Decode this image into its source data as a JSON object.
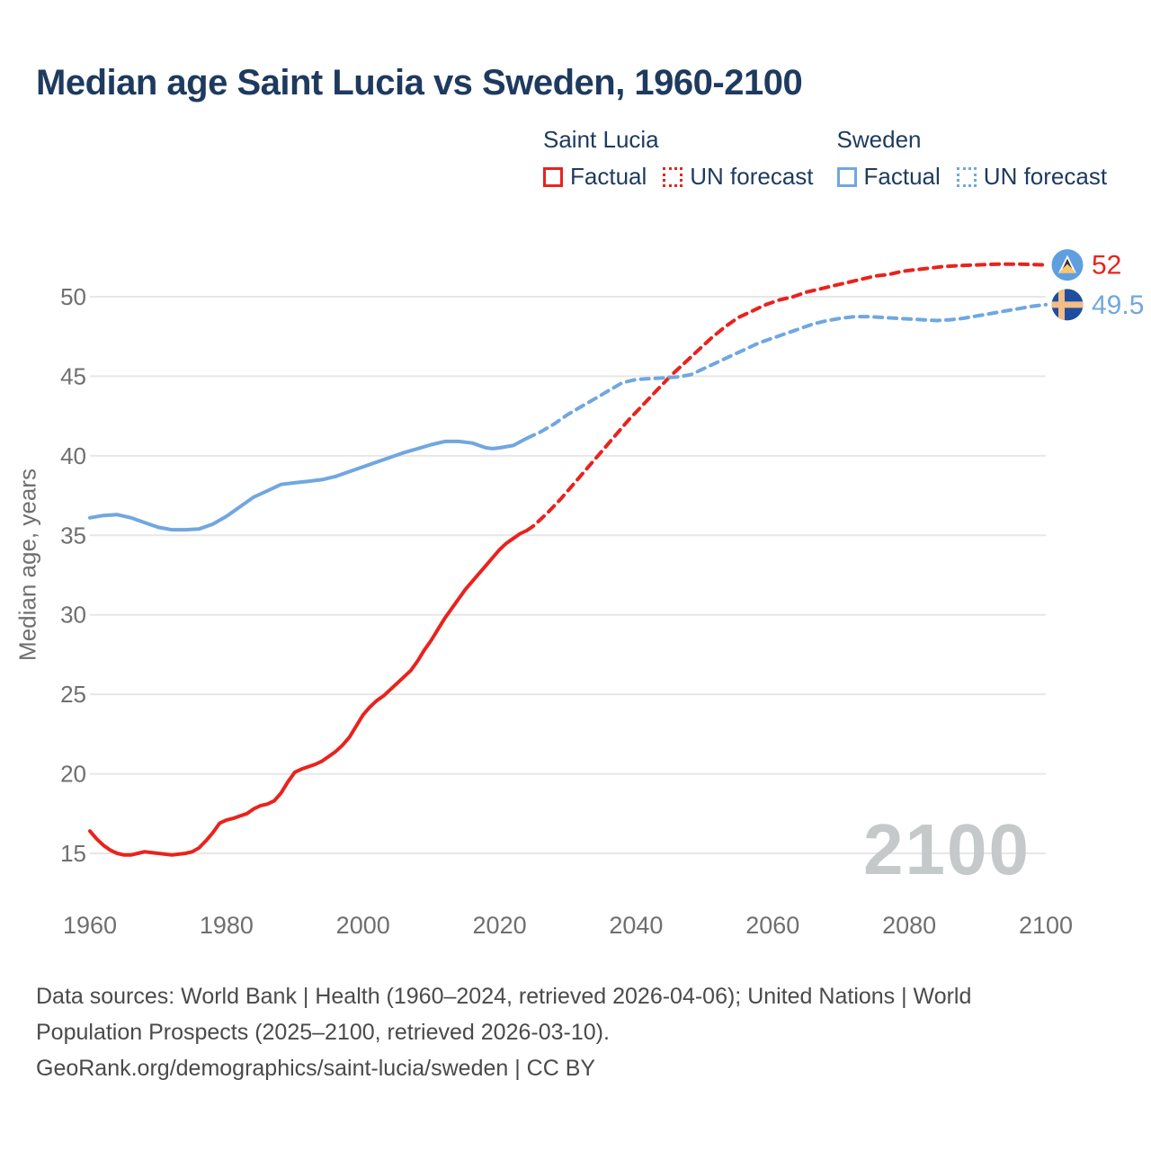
{
  "header": {
    "title": "Median age Saint Lucia vs Sweden, 1960-2100"
  },
  "legend": {
    "groups": [
      {
        "header": "Saint Lucia",
        "items": [
          {
            "label": "Factual",
            "style": "solid",
            "color": "#e8231d"
          },
          {
            "label": "UN forecast",
            "style": "dotted",
            "color": "#e8231d"
          }
        ]
      },
      {
        "header": "Sweden",
        "items": [
          {
            "label": "Factual",
            "style": "solid",
            "color": "#70a7e0"
          },
          {
            "label": "UN forecast",
            "style": "dotted",
            "color": "#70a7e0"
          }
        ]
      }
    ]
  },
  "colors": {
    "saint_lucia": "#e8231d",
    "sweden": "#70a7e0",
    "title_navy": "#1e3a5f",
    "axis_text": "#6f6f6f",
    "grid": "#e7e7e7",
    "footer_text": "#4a4a4a",
    "watermark": "#c6c9c9",
    "sl_flag_bg": "#5f9fe0",
    "sl_flag_white": "#ffffff",
    "sl_flag_dark": "#30303a",
    "sl_flag_yellow": "#f6c76f",
    "se_flag_bg": "#1d4f9e",
    "se_flag_cross": "#f3bd85"
  },
  "chart_data": {
    "type": "line",
    "title": "Median age Saint Lucia vs Sweden, 1960-2100",
    "xlabel": "",
    "ylabel": "Median age, years",
    "x_ticks": [
      1960,
      1980,
      2000,
      2020,
      2040,
      2060,
      2080,
      2100
    ],
    "y_ticks": [
      15,
      20,
      25,
      30,
      35,
      40,
      45,
      50
    ],
    "xlim": [
      1960,
      2100
    ],
    "ylim": [
      13,
      54
    ],
    "grid": "horizontal-only",
    "legend_position": "top-right",
    "watermark": "2100",
    "series": [
      {
        "name": "Saint Lucia — Factual",
        "country": "Saint Lucia",
        "kind": "Factual",
        "style": "solid",
        "color_key": "saint_lucia",
        "points": [
          [
            1960,
            16.4
          ],
          [
            1961,
            15.9
          ],
          [
            1962,
            15.5
          ],
          [
            1963,
            15.2
          ],
          [
            1964,
            15.0
          ],
          [
            1965,
            14.9
          ],
          [
            1966,
            14.9
          ],
          [
            1967,
            15.0
          ],
          [
            1968,
            15.1
          ],
          [
            1969,
            15.05
          ],
          [
            1970,
            15.0
          ],
          [
            1971,
            14.95
          ],
          [
            1972,
            14.9
          ],
          [
            1973,
            14.95
          ],
          [
            1974,
            15.0
          ],
          [
            1975,
            15.1
          ],
          [
            1976,
            15.35
          ],
          [
            1977,
            15.8
          ],
          [
            1978,
            16.3
          ],
          [
            1979,
            16.9
          ],
          [
            1980,
            17.1
          ],
          [
            1981,
            17.2
          ],
          [
            1982,
            17.35
          ],
          [
            1983,
            17.5
          ],
          [
            1984,
            17.8
          ],
          [
            1985,
            18.0
          ],
          [
            1986,
            18.1
          ],
          [
            1987,
            18.3
          ],
          [
            1988,
            18.8
          ],
          [
            1989,
            19.5
          ],
          [
            1990,
            20.1
          ],
          [
            1991,
            20.3
          ],
          [
            1992,
            20.45
          ],
          [
            1993,
            20.6
          ],
          [
            1994,
            20.8
          ],
          [
            1995,
            21.1
          ],
          [
            1996,
            21.4
          ],
          [
            1997,
            21.8
          ],
          [
            1998,
            22.3
          ],
          [
            1999,
            23.0
          ],
          [
            2000,
            23.7
          ],
          [
            2001,
            24.2
          ],
          [
            2002,
            24.6
          ],
          [
            2003,
            24.9
          ],
          [
            2004,
            25.3
          ],
          [
            2005,
            25.7
          ],
          [
            2006,
            26.1
          ],
          [
            2007,
            26.5
          ],
          [
            2008,
            27.1
          ],
          [
            2009,
            27.8
          ],
          [
            2010,
            28.4
          ],
          [
            2011,
            29.1
          ],
          [
            2012,
            29.8
          ],
          [
            2013,
            30.4
          ],
          [
            2014,
            31.0
          ],
          [
            2015,
            31.6
          ],
          [
            2016,
            32.1
          ],
          [
            2017,
            32.6
          ],
          [
            2018,
            33.1
          ],
          [
            2019,
            33.6
          ],
          [
            2020,
            34.1
          ],
          [
            2021,
            34.5
          ],
          [
            2022,
            34.8
          ],
          [
            2023,
            35.1
          ],
          [
            2024,
            35.3
          ]
        ]
      },
      {
        "name": "Saint Lucia — UN forecast",
        "country": "Saint Lucia",
        "kind": "UN forecast",
        "style": "dashed",
        "color_key": "saint_lucia",
        "points": [
          [
            2024,
            35.3
          ],
          [
            2025,
            35.6
          ],
          [
            2027,
            36.4
          ],
          [
            2029,
            37.3
          ],
          [
            2031,
            38.3
          ],
          [
            2033,
            39.3
          ],
          [
            2035,
            40.3
          ],
          [
            2037,
            41.3
          ],
          [
            2039,
            42.3
          ],
          [
            2041,
            43.2
          ],
          [
            2043,
            44.1
          ],
          [
            2045,
            45.0
          ],
          [
            2047,
            45.8
          ],
          [
            2049,
            46.6
          ],
          [
            2051,
            47.4
          ],
          [
            2053,
            48.1
          ],
          [
            2055,
            48.7
          ],
          [
            2057,
            49.1
          ],
          [
            2059,
            49.5
          ],
          [
            2061,
            49.8
          ],
          [
            2063,
            50.0
          ],
          [
            2065,
            50.3
          ],
          [
            2067,
            50.5
          ],
          [
            2069,
            50.7
          ],
          [
            2071,
            50.9
          ],
          [
            2073,
            51.1
          ],
          [
            2075,
            51.3
          ],
          [
            2077,
            51.4
          ],
          [
            2079,
            51.6
          ],
          [
            2081,
            51.7
          ],
          [
            2083,
            51.8
          ],
          [
            2085,
            51.9
          ],
          [
            2087,
            51.95
          ],
          [
            2090,
            52.0
          ],
          [
            2093,
            52.05
          ],
          [
            2096,
            52.05
          ],
          [
            2100,
            52.0
          ]
        ]
      },
      {
        "name": "Sweden — Factual",
        "country": "Sweden",
        "kind": "Factual",
        "style": "solid",
        "color_key": "sweden",
        "points": [
          [
            1960,
            36.1
          ],
          [
            1962,
            36.25
          ],
          [
            1964,
            36.3
          ],
          [
            1966,
            36.1
          ],
          [
            1968,
            35.8
          ],
          [
            1970,
            35.5
          ],
          [
            1972,
            35.35
          ],
          [
            1974,
            35.35
          ],
          [
            1976,
            35.4
          ],
          [
            1978,
            35.7
          ],
          [
            1980,
            36.2
          ],
          [
            1982,
            36.8
          ],
          [
            1984,
            37.4
          ],
          [
            1986,
            37.8
          ],
          [
            1988,
            38.2
          ],
          [
            1990,
            38.3
          ],
          [
            1992,
            38.4
          ],
          [
            1994,
            38.5
          ],
          [
            1996,
            38.7
          ],
          [
            1998,
            39.0
          ],
          [
            2000,
            39.3
          ],
          [
            2002,
            39.6
          ],
          [
            2004,
            39.9
          ],
          [
            2006,
            40.2
          ],
          [
            2008,
            40.45
          ],
          [
            2010,
            40.7
          ],
          [
            2012,
            40.9
          ],
          [
            2014,
            40.9
          ],
          [
            2016,
            40.8
          ],
          [
            2018,
            40.5
          ],
          [
            2019,
            40.45
          ],
          [
            2020,
            40.5
          ],
          [
            2022,
            40.65
          ],
          [
            2024,
            41.1
          ]
        ]
      },
      {
        "name": "Sweden — UN forecast",
        "country": "Sweden",
        "kind": "UN forecast",
        "style": "dashed",
        "color_key": "sweden",
        "points": [
          [
            2024,
            41.1
          ],
          [
            2026,
            41.5
          ],
          [
            2028,
            42.0
          ],
          [
            2030,
            42.6
          ],
          [
            2032,
            43.1
          ],
          [
            2034,
            43.6
          ],
          [
            2036,
            44.1
          ],
          [
            2038,
            44.6
          ],
          [
            2040,
            44.8
          ],
          [
            2042,
            44.85
          ],
          [
            2044,
            44.9
          ],
          [
            2046,
            44.95
          ],
          [
            2048,
            45.1
          ],
          [
            2050,
            45.5
          ],
          [
            2052,
            45.9
          ],
          [
            2054,
            46.3
          ],
          [
            2056,
            46.7
          ],
          [
            2058,
            47.1
          ],
          [
            2060,
            47.4
          ],
          [
            2062,
            47.7
          ],
          [
            2064,
            48.0
          ],
          [
            2066,
            48.3
          ],
          [
            2068,
            48.5
          ],
          [
            2070,
            48.65
          ],
          [
            2072,
            48.75
          ],
          [
            2074,
            48.75
          ],
          [
            2076,
            48.7
          ],
          [
            2078,
            48.65
          ],
          [
            2080,
            48.6
          ],
          [
            2082,
            48.55
          ],
          [
            2084,
            48.5
          ],
          [
            2086,
            48.55
          ],
          [
            2088,
            48.65
          ],
          [
            2090,
            48.8
          ],
          [
            2092,
            48.95
          ],
          [
            2094,
            49.1
          ],
          [
            2096,
            49.25
          ],
          [
            2098,
            49.4
          ],
          [
            2100,
            49.5
          ]
        ]
      }
    ],
    "end_labels": [
      {
        "text": "52",
        "value": 52,
        "year": 2100,
        "flag": "saint-lucia",
        "color_key": "saint_lucia"
      },
      {
        "text": "49.5",
        "value": 49.5,
        "year": 2100,
        "flag": "sweden",
        "color_key": "sweden"
      }
    ]
  },
  "footer": {
    "line1": "Data sources: World Bank | Health (1960–2024, retrieved 2026-04-06); United Nations | World",
    "line2": "Population Prospects (2025–2100, retrieved 2026-03-10).",
    "line3": "GeoRank.org/demographics/saint-lucia/sweden | CC BY"
  }
}
